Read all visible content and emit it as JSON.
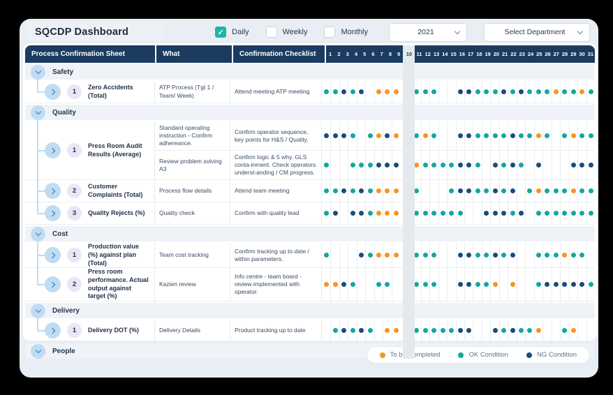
{
  "app": {
    "title": "SQCDP Dashboard"
  },
  "filters": {
    "daily": {
      "label": "Daily",
      "checked": true
    },
    "weekly": {
      "label": "Weekly",
      "checked": false
    },
    "monthly": {
      "label": "Monthly",
      "checked": false
    },
    "year": {
      "value": "2021"
    },
    "department": {
      "value": "Select Department"
    }
  },
  "table": {
    "columns": [
      "Process Confirmation Sheet",
      "What",
      "Confirmation Checklist"
    ],
    "day_count": 31,
    "highlighted_day": 10,
    "day_legend": {
      "O": "ok",
      "N": "ng",
      "T": "todo",
      ".": "empty"
    },
    "sections": [
      {
        "name": "Safety",
        "rows": [
          {
            "num": "1",
            "label": "Zero Accidents (Total)",
            "subs": [
              {
                "what": "ATP Process (Tgt 1 / Team/ Week)",
                "checklist": "Attend meeting ATP meeting",
                "days": "OONON.TTT.OOO..NNOOONONOOOTOOTO"
              }
            ]
          }
        ]
      },
      {
        "name": "Quality",
        "rows": [
          {
            "num": "1",
            "label": "Press Room Audit Results (Average)",
            "subs": [
              {
                "what": "Standard operating instruction - Confirm adhereance.",
                "checklist": "Confirm operator sequence, key points for H&S / Quality.",
                "days": "NNNO.OTNT.OTO..NNOOOONOOTO.OTOO"
              },
              {
                "what": "Review problem solving A3",
                "checklist": "Confirm logic & 5 why. GLS conta-inment. Check operators underst-anding / CM progress.",
                "days": "O..OOONNN.TOOOONNO.NONO.N...NNN"
              }
            ]
          },
          {
            "num": "2",
            "label": "Customer Complaints (Total)",
            "subs": [
              {
                "what": "Process flow details",
                "checklist": "Attend team meeting",
                "days": "OONONOTTT.O...ONNOONON.OTOOOTOO"
              }
            ]
          },
          {
            "num": "3",
            "label": "Quality Rejects (%)",
            "subs": [
              {
                "what": "Quality check",
                "checklist": "Confirm with quality lead",
                "days": "ON.NNOTTT.OOOOOO..NNNON.OOOOOOO"
              }
            ]
          }
        ]
      },
      {
        "name": "Cost",
        "rows": [
          {
            "num": "1",
            "label": "Production value (%) against plan (Total)",
            "subs": [
              {
                "what": "Team cost tracking",
                "checklist": "Confirm tracking up to date / within parameters.",
                "days": "O...NOTTT.OOO..NNOONON..OOOTOO."
              }
            ]
          },
          {
            "num": "2",
            "label": "Press room performance. Actual output against target (%)",
            "subs": [
              {
                "what": "Kazien review",
                "checklist": "Info centre - team board - review implemented with operator.",
                "days": "TTNO..OO..OOO..NNOOT.T..ONNNNNO"
              }
            ]
          }
        ]
      },
      {
        "name": "Delivery",
        "rows": [
          {
            "num": "1",
            "label": "Delivery DOT (%)",
            "subs": [
              {
                "what": "Delivery Details",
                "checklist": "Product tracking up to date",
                "days": ".ONONO.TT.OOOOONN..NONOOT..OT.."
              }
            ]
          }
        ]
      },
      {
        "name": "People",
        "rows": []
      }
    ]
  },
  "legend": {
    "items": [
      {
        "label": "To be Completed",
        "status": "todo"
      },
      {
        "label": "OK Condition",
        "status": "ok"
      },
      {
        "label": "NG Condition",
        "status": "ng"
      }
    ]
  },
  "status_colors": {
    "ok": "#14A79D",
    "ng": "#1A4B7D",
    "todo": "#F79421",
    "check": "#17B8A6"
  }
}
